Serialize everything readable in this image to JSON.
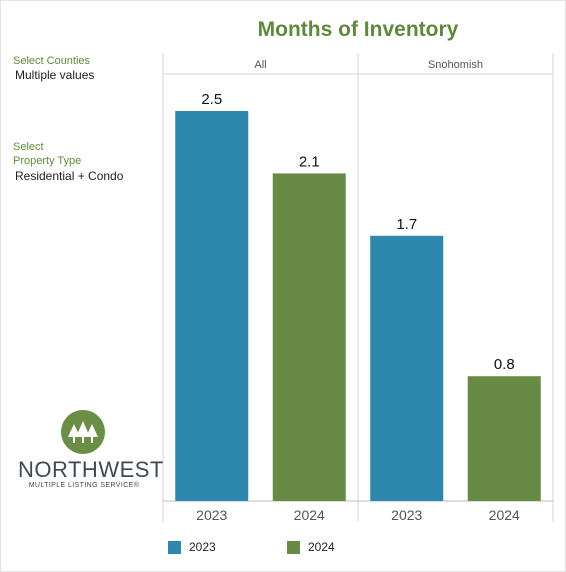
{
  "filters": {
    "counties_label": "Select Counties",
    "counties_value": "Multiple values",
    "property_label_line1": "Select",
    "property_label_line2": "Property Type",
    "property_value": "Residential + Condo"
  },
  "logo": {
    "wordmark": "NORTHWEST",
    "subtitle": "MULTIPLE LISTING SERVICE®"
  },
  "colors": {
    "y2023": "#2e88ad",
    "y2024": "#678a45"
  },
  "chart_data": {
    "type": "bar",
    "title": "Months of Inventory",
    "panels": [
      "All",
      "Snohomish"
    ],
    "categories": [
      "2023",
      "2024"
    ],
    "series": [
      {
        "panel": "All",
        "values": [
          2.5,
          2.1
        ]
      },
      {
        "panel": "Snohomish",
        "values": [
          1.7,
          0.8
        ]
      }
    ],
    "ylim": [
      0,
      2.5
    ],
    "legend": {
      "position": "bottom",
      "items": [
        {
          "label": "2023",
          "color": "#2e88ad"
        },
        {
          "label": "2024",
          "color": "#678a45"
        }
      ]
    },
    "grid": false
  }
}
